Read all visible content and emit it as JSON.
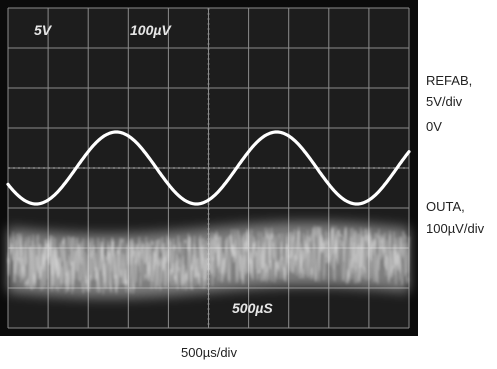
{
  "chart_data": {
    "type": "line",
    "series": [
      {
        "name": "REFAB",
        "scale": "5V/div",
        "zero_label": "0V",
        "shape": "sine",
        "amplitude_div": 0.9,
        "period_div": 4.0,
        "peak_x_div": 2.7,
        "offset_div": 0
      },
      {
        "name": "OUTA",
        "scale": "100µV/div",
        "shape": "noise",
        "noise_band_div": 1.6,
        "offset_div": -2.3
      }
    ],
    "screen_readouts": {
      "ch1_scale": "5V",
      "ch2_scale": "100µV",
      "timebase": "500µS"
    },
    "xlabel": "500µs/div",
    "xlim": [
      0,
      10
    ],
    "ylim": [
      -4,
      4
    ],
    "grid": true,
    "colors": {
      "screen": "#1d1d1d",
      "bezel": "#0b0b0b",
      "grid": "#8c8c8c",
      "trace": "#ffffff",
      "readout": "#e6e6e6"
    }
  },
  "labels": {
    "refab_name": "REFAB,",
    "refab_scale": "5V/div",
    "refab_zero": "0V",
    "outa_name": "OUTA,",
    "outa_scale": "100µV/div",
    "time_scale": "500µs/div"
  }
}
